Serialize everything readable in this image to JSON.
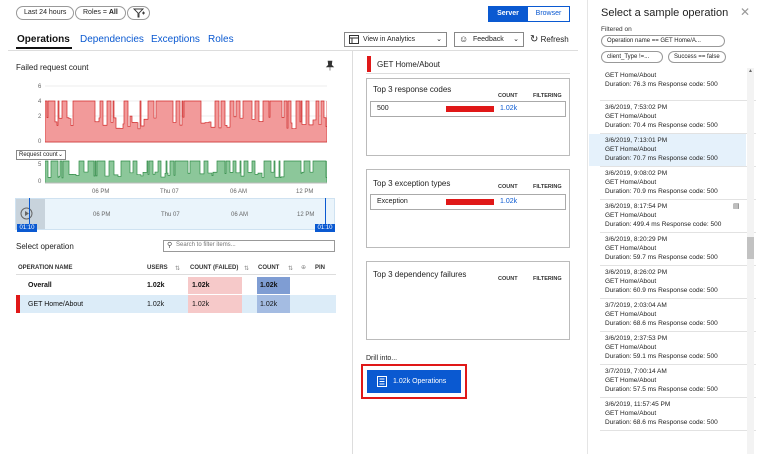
{
  "toolbar": {
    "time_range": "Last 24 hours",
    "roles_prefix": "Roles = ",
    "roles_value": "All",
    "server": "Server",
    "browser": "Browser"
  },
  "tabs": [
    "Operations",
    "Dependencies",
    "Exceptions",
    "Roles"
  ],
  "actions": {
    "view_in_analytics": "View in Analytics",
    "feedback": "Feedback",
    "refresh": "Refresh"
  },
  "chart": {
    "title": "Failed request count",
    "dropdown": "Request count",
    "top_ticks": [
      "6",
      "4",
      "2",
      "0"
    ],
    "bottom_ticks": [
      "5",
      "0"
    ],
    "time_ticks": [
      "06 PM",
      "Thu 07",
      "06 AM",
      "12 PM"
    ],
    "range_start": "01:10",
    "range_end": "01:10"
  },
  "operations": {
    "label": "Select operation",
    "search_placeholder": "Search to filter items...",
    "headers": {
      "name": "OPERATION NAME",
      "users": "USERS",
      "count_failed": "COUNT (FAILED)",
      "count": "COUNT",
      "pin": "PIN"
    },
    "rows": [
      {
        "name": "Overall",
        "users": "1.02k",
        "count_failed": "1.02k",
        "count": "1.02k"
      },
      {
        "name": "GET Home/About",
        "users": "1.02k",
        "count_failed": "1.02k",
        "count": "1.02k"
      }
    ]
  },
  "details": {
    "selected_op": "GET Home/About",
    "response_codes": {
      "title": "Top 3 response codes",
      "col_count": "COUNT",
      "col_filter": "FILTERING",
      "rows": [
        {
          "name": "500",
          "count": "1.02k"
        }
      ]
    },
    "exceptions": {
      "title": "Top 3 exception types",
      "col_count": "COUNT",
      "col_filter": "FILTERING",
      "rows": [
        {
          "name": "Exception",
          "count": "1.02k"
        }
      ]
    },
    "dependencies": {
      "title": "Top 3 dependency failures",
      "col_count": "COUNT",
      "col_filter": "FILTERING"
    },
    "drill_label": "Drill into...",
    "drill_button": "1.02k Operations"
  },
  "sample_panel": {
    "title": "Select a sample operation",
    "filtered_on": "Filtered on",
    "filters": [
      "Operation name == GET Home/A...",
      "client_Type !=...",
      "Success == false"
    ],
    "items": [
      {
        "ts": "",
        "name": "GET Home/About",
        "detail": "Duration: 76.3 ms  Response code: 500"
      },
      {
        "ts": "3/6/2019, 7:53:02 PM",
        "name": "GET Home/About",
        "detail": "Duration: 70.4 ms  Response code: 500"
      },
      {
        "ts": "3/6/2019, 7:13:01 PM",
        "name": "GET Home/About",
        "detail": "Duration: 70.7 ms  Response code: 500"
      },
      {
        "ts": "3/6/2019, 9:08:02 PM",
        "name": "GET Home/About",
        "detail": "Duration: 70.9 ms  Response code: 500"
      },
      {
        "ts": "3/6/2019, 8:17:54 PM",
        "name": "GET Home/About",
        "detail": "Duration: 499.4 ms  Response code: 500"
      },
      {
        "ts": "3/6/2019, 8:20:29 PM",
        "name": "GET Home/About",
        "detail": "Duration: 59.7 ms  Response code: 500"
      },
      {
        "ts": "3/6/2019, 8:26:02 PM",
        "name": "GET Home/About",
        "detail": "Duration: 60.9 ms  Response code: 500"
      },
      {
        "ts": "3/7/2019, 2:03:04 AM",
        "name": "GET Home/About",
        "detail": "Duration: 68.6 ms  Response code: 500"
      },
      {
        "ts": "3/6/2019, 2:37:53 PM",
        "name": "GET Home/About",
        "detail": "Duration: 59.1 ms  Response code: 500"
      },
      {
        "ts": "3/7/2019, 7:00:14 AM",
        "name": "GET Home/About",
        "detail": "Duration: 57.5 ms  Response code: 500"
      },
      {
        "ts": "3/6/2019, 11:57:45 PM",
        "name": "GET Home/About",
        "detail": "Duration: 68.6 ms  Response code: 500"
      }
    ]
  },
  "colors": {
    "accent": "#0a59d1",
    "failed": "#e01818",
    "failed_fill": "#f29a9a",
    "success_fill": "#7fc08e"
  }
}
